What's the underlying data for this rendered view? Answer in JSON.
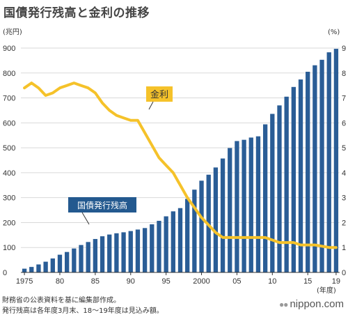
{
  "title": "国債発行残高と金利の推移",
  "source_lines": [
    "財務省の公表資料を基に編集部作成。",
    "発行残高は各年度3月末、18〜19年度は見込み額。"
  ],
  "brand": "nippon.com",
  "colors": {
    "bar": "#2a5d96",
    "line": "#f5c22a",
    "label_bg_debt": "#23598f",
    "label_bg_rate": "#f5c22a"
  },
  "chart_data": {
    "type": "bar+line",
    "title": "国債発行残高と金利の推移",
    "left_axis_unit": "(兆円)",
    "right_axis_unit": "(%)",
    "x_axis_unit": "(年度)",
    "x_tick_labels": [
      "1975",
      "80",
      "85",
      "90",
      "95",
      "2000",
      "05",
      "10",
      "15",
      "19"
    ],
    "left_ticks": [
      "0",
      "100",
      "200",
      "300",
      "400",
      "500",
      "600",
      "700",
      "800",
      "900"
    ],
    "right_ticks": [
      "0",
      "1",
      "2",
      "3",
      "4",
      "5",
      "6",
      "7",
      "8",
      "9"
    ],
    "ylim_left": [
      0,
      900
    ],
    "ylim_right": [
      0,
      9
    ],
    "grid": true,
    "years": [
      1975,
      1976,
      1977,
      1978,
      1979,
      1980,
      1981,
      1982,
      1983,
      1984,
      1985,
      1986,
      1987,
      1988,
      1989,
      1990,
      1991,
      1992,
      1993,
      1994,
      1995,
      1996,
      1997,
      1998,
      1999,
      2000,
      2001,
      2002,
      2003,
      2004,
      2005,
      2006,
      2007,
      2008,
      2009,
      2010,
      2011,
      2012,
      2013,
      2014,
      2015,
      2016,
      2017,
      2018,
      2019
    ],
    "series": [
      {
        "name": "国債発行残高",
        "axis": "left",
        "type": "bar",
        "values": [
          15,
          22,
          32,
          43,
          56,
          71,
          82,
          96,
          110,
          122,
          134,
          145,
          152,
          157,
          161,
          166,
          172,
          178,
          193,
          207,
          225,
          245,
          258,
          295,
          332,
          368,
          392,
          421,
          457,
          499,
          527,
          532,
          541,
          546,
          594,
          636,
          670,
          705,
          744,
          774,
          805,
          831,
          853,
          883,
          897
        ]
      },
      {
        "name": "金利",
        "axis": "right",
        "type": "line",
        "values": [
          7.4,
          7.6,
          7.4,
          7.1,
          7.2,
          7.4,
          7.5,
          7.6,
          7.5,
          7.4,
          7.2,
          6.8,
          6.5,
          6.3,
          6.2,
          6.1,
          6.1,
          5.6,
          5.1,
          4.6,
          4.3,
          4.0,
          3.5,
          3.0,
          2.6,
          2.2,
          1.9,
          1.6,
          1.4,
          1.4,
          1.4,
          1.4,
          1.4,
          1.4,
          1.4,
          1.3,
          1.2,
          1.2,
          1.2,
          1.1,
          1.1,
          1.1,
          1.05,
          1.0,
          1.0
        ]
      }
    ]
  }
}
